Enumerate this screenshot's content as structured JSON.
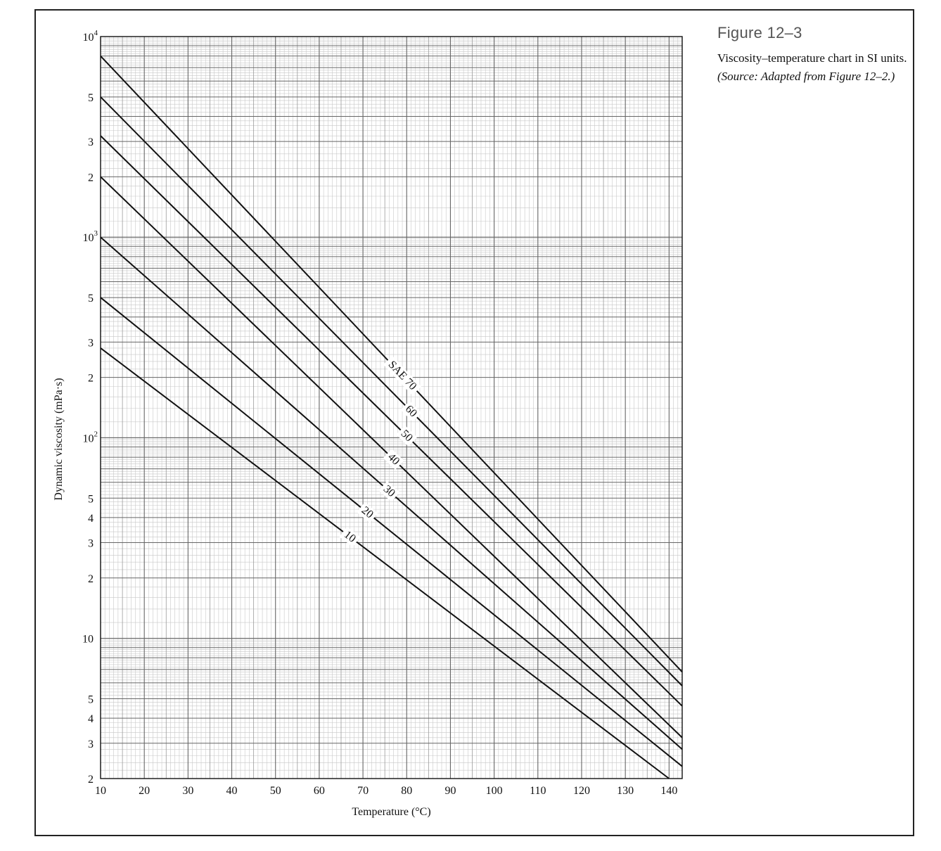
{
  "figure": {
    "label": "Figure 12–3",
    "caption_main": "Viscosity–temperature chart in SI units.",
    "caption_source": "(Source: Adapted from Figure 12–2.)"
  },
  "chart_data": {
    "type": "line",
    "xlabel": "Temperature (°C)",
    "ylabel": "Dynamic viscosity (mPa·s)",
    "xlim": [
      10,
      143
    ],
    "ylim": [
      2,
      10000
    ],
    "y_scale": "log",
    "grid": true,
    "x_ticks": [
      {
        "v": 10,
        "label": "10"
      },
      {
        "v": 20,
        "label": "20"
      },
      {
        "v": 30,
        "label": "30"
      },
      {
        "v": 40,
        "label": "40"
      },
      {
        "v": 50,
        "label": "50"
      },
      {
        "v": 60,
        "label": "60"
      },
      {
        "v": 70,
        "label": "70"
      },
      {
        "v": 80,
        "label": "80"
      },
      {
        "v": 90,
        "label": "90"
      },
      {
        "v": 100,
        "label": "100"
      },
      {
        "v": 110,
        "label": "110"
      },
      {
        "v": 120,
        "label": "120"
      },
      {
        "v": 130,
        "label": "130"
      },
      {
        "v": 140,
        "label": "140"
      }
    ],
    "y_ticks": [
      {
        "v": 10000,
        "base": "10",
        "exp": "4"
      },
      {
        "v": 5000,
        "base": "5",
        "exp": ""
      },
      {
        "v": 3000,
        "base": "3",
        "exp": ""
      },
      {
        "v": 2000,
        "base": "2",
        "exp": ""
      },
      {
        "v": 1000,
        "base": "10",
        "exp": "3"
      },
      {
        "v": 500,
        "base": "5",
        "exp": ""
      },
      {
        "v": 300,
        "base": "3",
        "exp": ""
      },
      {
        "v": 200,
        "base": "2",
        "exp": ""
      },
      {
        "v": 100,
        "base": "10",
        "exp": "2"
      },
      {
        "v": 50,
        "base": "5",
        "exp": ""
      },
      {
        "v": 40,
        "base": "4",
        "exp": ""
      },
      {
        "v": 30,
        "base": "3",
        "exp": ""
      },
      {
        "v": 20,
        "base": "2",
        "exp": ""
      },
      {
        "v": 10,
        "base": "10",
        "exp": ""
      },
      {
        "v": 5,
        "base": "5",
        "exp": ""
      },
      {
        "v": 4,
        "base": "4",
        "exp": ""
      },
      {
        "v": 3,
        "base": "3",
        "exp": ""
      },
      {
        "v": 2,
        "base": "2",
        "exp": ""
      }
    ],
    "series": [
      {
        "name": "SAE 70",
        "label": "SAE 70",
        "label_at": 79,
        "points": [
          {
            "x": 10,
            "y": 8000
          },
          {
            "x": 143,
            "y": 6.8
          }
        ]
      },
      {
        "name": "60",
        "label": "60",
        "label_at": 81,
        "points": [
          {
            "x": 10,
            "y": 5000
          },
          {
            "x": 143,
            "y": 5.8
          }
        ]
      },
      {
        "name": "50",
        "label": "50",
        "label_at": 80,
        "points": [
          {
            "x": 10,
            "y": 3200
          },
          {
            "x": 143,
            "y": 4.6
          }
        ]
      },
      {
        "name": "40",
        "label": "40",
        "label_at": 77,
        "points": [
          {
            "x": 10,
            "y": 2000
          },
          {
            "x": 143,
            "y": 3.2
          }
        ]
      },
      {
        "name": "30",
        "label": "30",
        "label_at": 76,
        "points": [
          {
            "x": 10,
            "y": 1000
          },
          {
            "x": 143,
            "y": 2.8
          }
        ]
      },
      {
        "name": "20",
        "label": "20",
        "label_at": 71,
        "points": [
          {
            "x": 10,
            "y": 500
          },
          {
            "x": 143,
            "y": 2.3
          }
        ]
      },
      {
        "name": "10",
        "label": "10",
        "label_at": 67,
        "points": [
          {
            "x": 10,
            "y": 280
          },
          {
            "x": 140,
            "y": 2.0
          }
        ]
      }
    ]
  }
}
